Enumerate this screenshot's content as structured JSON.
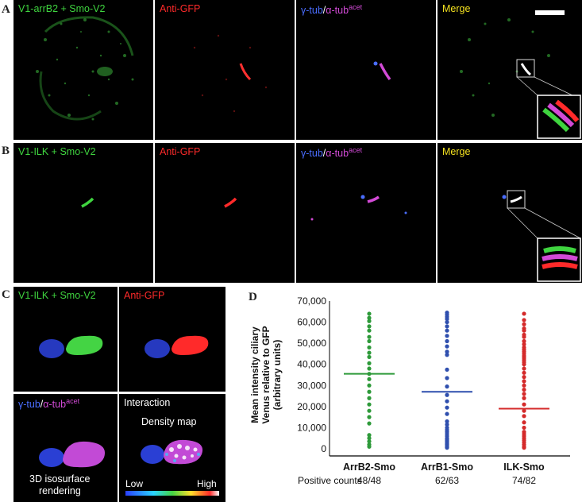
{
  "panels": {
    "A": {
      "letter": "A",
      "labels": [
        "V1-arrB2 + Smo-V2",
        "Anti-GFP",
        "γ-tub",
        "/",
        "α-tub",
        "acet",
        "Merge"
      ]
    },
    "B": {
      "letter": "B",
      "labels": [
        "V1-ILK + Smo-V2",
        "Anti-GFP",
        "γ-tub",
        "/",
        "α-tub",
        "acet",
        "Merge"
      ]
    },
    "C": {
      "letter": "C",
      "tile1": "V1-ILK + Smo-V2",
      "tile2": "Anti-GFP",
      "tile3_a": "γ-tub",
      "tile3_sep": "/",
      "tile3_b": "α-tub",
      "tile3_sup": "acet",
      "tile3_caption_1": "3D isosurface",
      "tile3_caption_2": "rendering",
      "tile4_title": "Interaction",
      "tile4_subtitle": "Density map",
      "scale_low": "Low",
      "scale_high": "High"
    },
    "D": {
      "letter": "D"
    }
  },
  "chart_data": {
    "type": "scatter",
    "ylabel_lines": [
      "Mean intensity ciliary",
      "Venus relative to GFP",
      "(arbitrary units)"
    ],
    "ylim": [
      0,
      70000
    ],
    "yticks": [
      "0",
      "10,000",
      "20,000",
      "30,000",
      "40,000",
      "50,000",
      "60,000",
      "70,000"
    ],
    "categories": [
      "ArrB2-Smo",
      "ArrB1-Smo",
      "ILK-Smo"
    ],
    "positive_counts_label": "Positive counts",
    "positive_counts": [
      "48/48",
      "62/63",
      "74/82"
    ],
    "colors": [
      "#2e9a3a",
      "#2f4fae",
      "#d42a2a"
    ],
    "means": [
      35500,
      27000,
      19000
    ],
    "series": [
      {
        "values": [
          64000,
          62000,
          60500,
          58000,
          56000,
          53000,
          51000,
          48000,
          45500,
          43500,
          40500,
          38000,
          35500,
          33000,
          30000,
          27000,
          24000,
          21000,
          18000,
          15000,
          12000,
          6500,
          5000,
          3500,
          2000,
          1000
        ]
      },
      {
        "values": [
          64500,
          63500,
          62500,
          61500,
          60000,
          58000,
          56000,
          53500,
          51000,
          48500,
          46000,
          44500,
          37500,
          33500,
          29500,
          25500,
          22500,
          19500,
          16500,
          13000,
          11500,
          10000,
          9000,
          8000,
          7000,
          6000,
          5000,
          4500,
          4000,
          3500,
          3000,
          2500,
          2000,
          1500,
          1000,
          500
        ]
      },
      {
        "values": [
          64000,
          61000,
          59000,
          57000,
          56000,
          54000,
          53000,
          51000,
          49500,
          48000,
          47000,
          46000,
          45000,
          44000,
          43000,
          42000,
          41000,
          40000,
          38000,
          36000,
          34000,
          32000,
          30000,
          28000,
          26000,
          24000,
          21000,
          18000,
          15500,
          12500,
          10000,
          8000,
          7000,
          6000,
          5000,
          4000,
          3000,
          2000,
          1000,
          500
        ]
      }
    ]
  }
}
